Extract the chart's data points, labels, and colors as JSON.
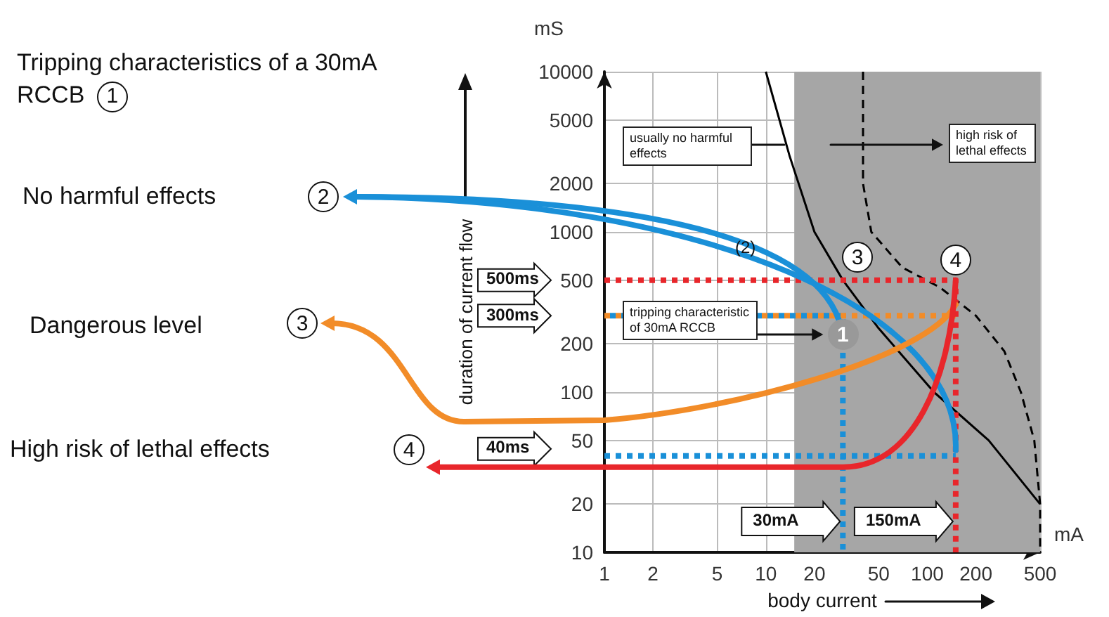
{
  "chart_data": {
    "type": "line",
    "title": "Tripping characteristics of a 30mA RCCB",
    "xlabel": "body current",
    "ylabel": "duration of current flow",
    "log": "xy",
    "grid": true,
    "xlim": [
      1,
      500
    ],
    "xticks": [
      1,
      2,
      5,
      10,
      20,
      50,
      100,
      200,
      500
    ],
    "ylim": [
      10,
      10000
    ],
    "yticks": [
      10,
      20,
      50,
      100,
      200,
      500,
      1000,
      2000,
      5000,
      10000
    ],
    "bands": [
      {
        "axis": "x",
        "from": 15,
        "to": 500,
        "color": "#a6a6a6"
      }
    ],
    "series": [
      {
        "color": "#000000",
        "line_style": "solid",
        "x": [
          10,
          14,
          20,
          30,
          50,
          110,
          240,
          500
        ],
        "values": [
          10000,
          3000,
          1000,
          500,
          250,
          100,
          50,
          20
        ]
      },
      {
        "color": "#000000",
        "line_style": "dashed",
        "x": [
          40,
          40,
          45,
          70,
          120,
          200,
          300,
          380,
          460,
          500,
          500
        ],
        "values": [
          10000,
          2000,
          1000,
          600,
          450,
          300,
          180,
          100,
          50,
          20,
          10
        ]
      },
      {
        "color": "#f28c28",
        "line_style": "dotted",
        "x": [
          1,
          150
        ],
        "values": [
          300,
          300
        ]
      },
      {
        "color": "#1a90d8",
        "line_style": "dotted",
        "x": [
          1,
          30,
          30
        ],
        "values": [
          300,
          300,
          10
        ]
      },
      {
        "color": "#1a90d8",
        "line_style": "dotted",
        "x": [
          1,
          150
        ],
        "values": [
          40,
          40
        ]
      },
      {
        "color": "#e8262b",
        "line_style": "dotted",
        "x": [
          1,
          150,
          150
        ],
        "values": [
          500,
          500,
          10
        ]
      }
    ],
    "annotations": [
      "1",
      "No harmful effects",
      "2",
      "Dangerous level",
      "3",
      "High risk of lethal effects",
      "4",
      "usually no harmful effects",
      "high risk of lethal effects",
      "tripping characteristic of 30mA RCCB",
      "(2)",
      "3",
      "4",
      "1",
      "500ms",
      "300ms",
      "40ms",
      "30mA",
      "150mA",
      "mS",
      "mA"
    ]
  }
}
